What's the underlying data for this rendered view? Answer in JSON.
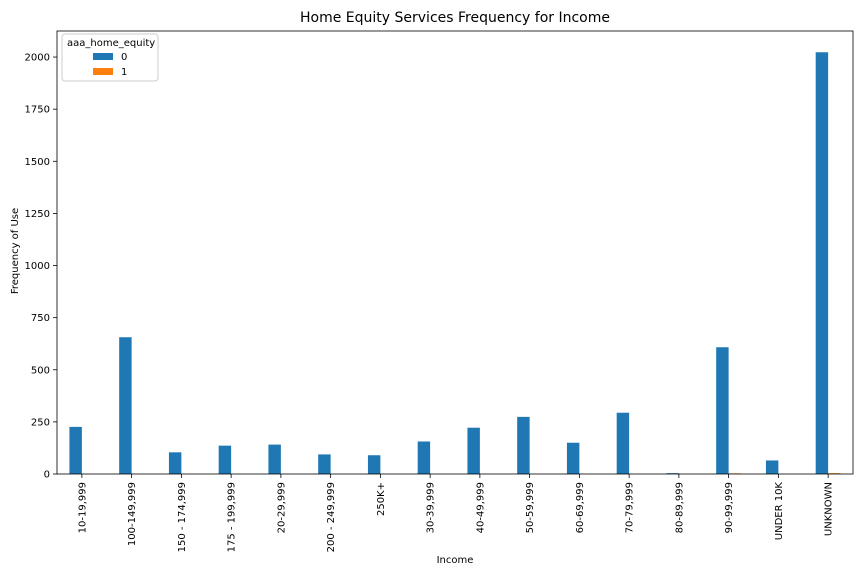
{
  "chart_data": {
    "type": "bar",
    "title": "Home Equity Services Frequency for Income",
    "xlabel": "Income",
    "ylabel": "Frequency of Use",
    "categories": [
      "10-19,999",
      "100-149,999",
      "150 - 174,999",
      "175 - 199,999",
      "20-29,999",
      "200 - 249,999",
      "250K+",
      "30-39,999",
      "40-49,999",
      "50-59,999",
      "60-69,999",
      "70-79,999",
      "80-89,999",
      "90-99,999",
      "UNDER 10K",
      "UNKNOWN"
    ],
    "legend_title": "aaa_home_equity",
    "legend_position": "top-left",
    "series": [
      {
        "name": "0",
        "color": "#1f77b4",
        "values": [
          226,
          656,
          104,
          136,
          141,
          94,
          90,
          156,
          222,
          274,
          150,
          294,
          4,
          608,
          65,
          2023
        ]
      },
      {
        "name": "1",
        "color": "#ff7f0e",
        "values": [
          0,
          0,
          0,
          0,
          0,
          0,
          0,
          0,
          0,
          0,
          0,
          0,
          0,
          3,
          0,
          4
        ]
      }
    ],
    "ylim": [
      0,
      2125
    ],
    "yticks": [
      0,
      250,
      500,
      750,
      1000,
      1250,
      1500,
      1750,
      2000
    ],
    "grid": false
  }
}
